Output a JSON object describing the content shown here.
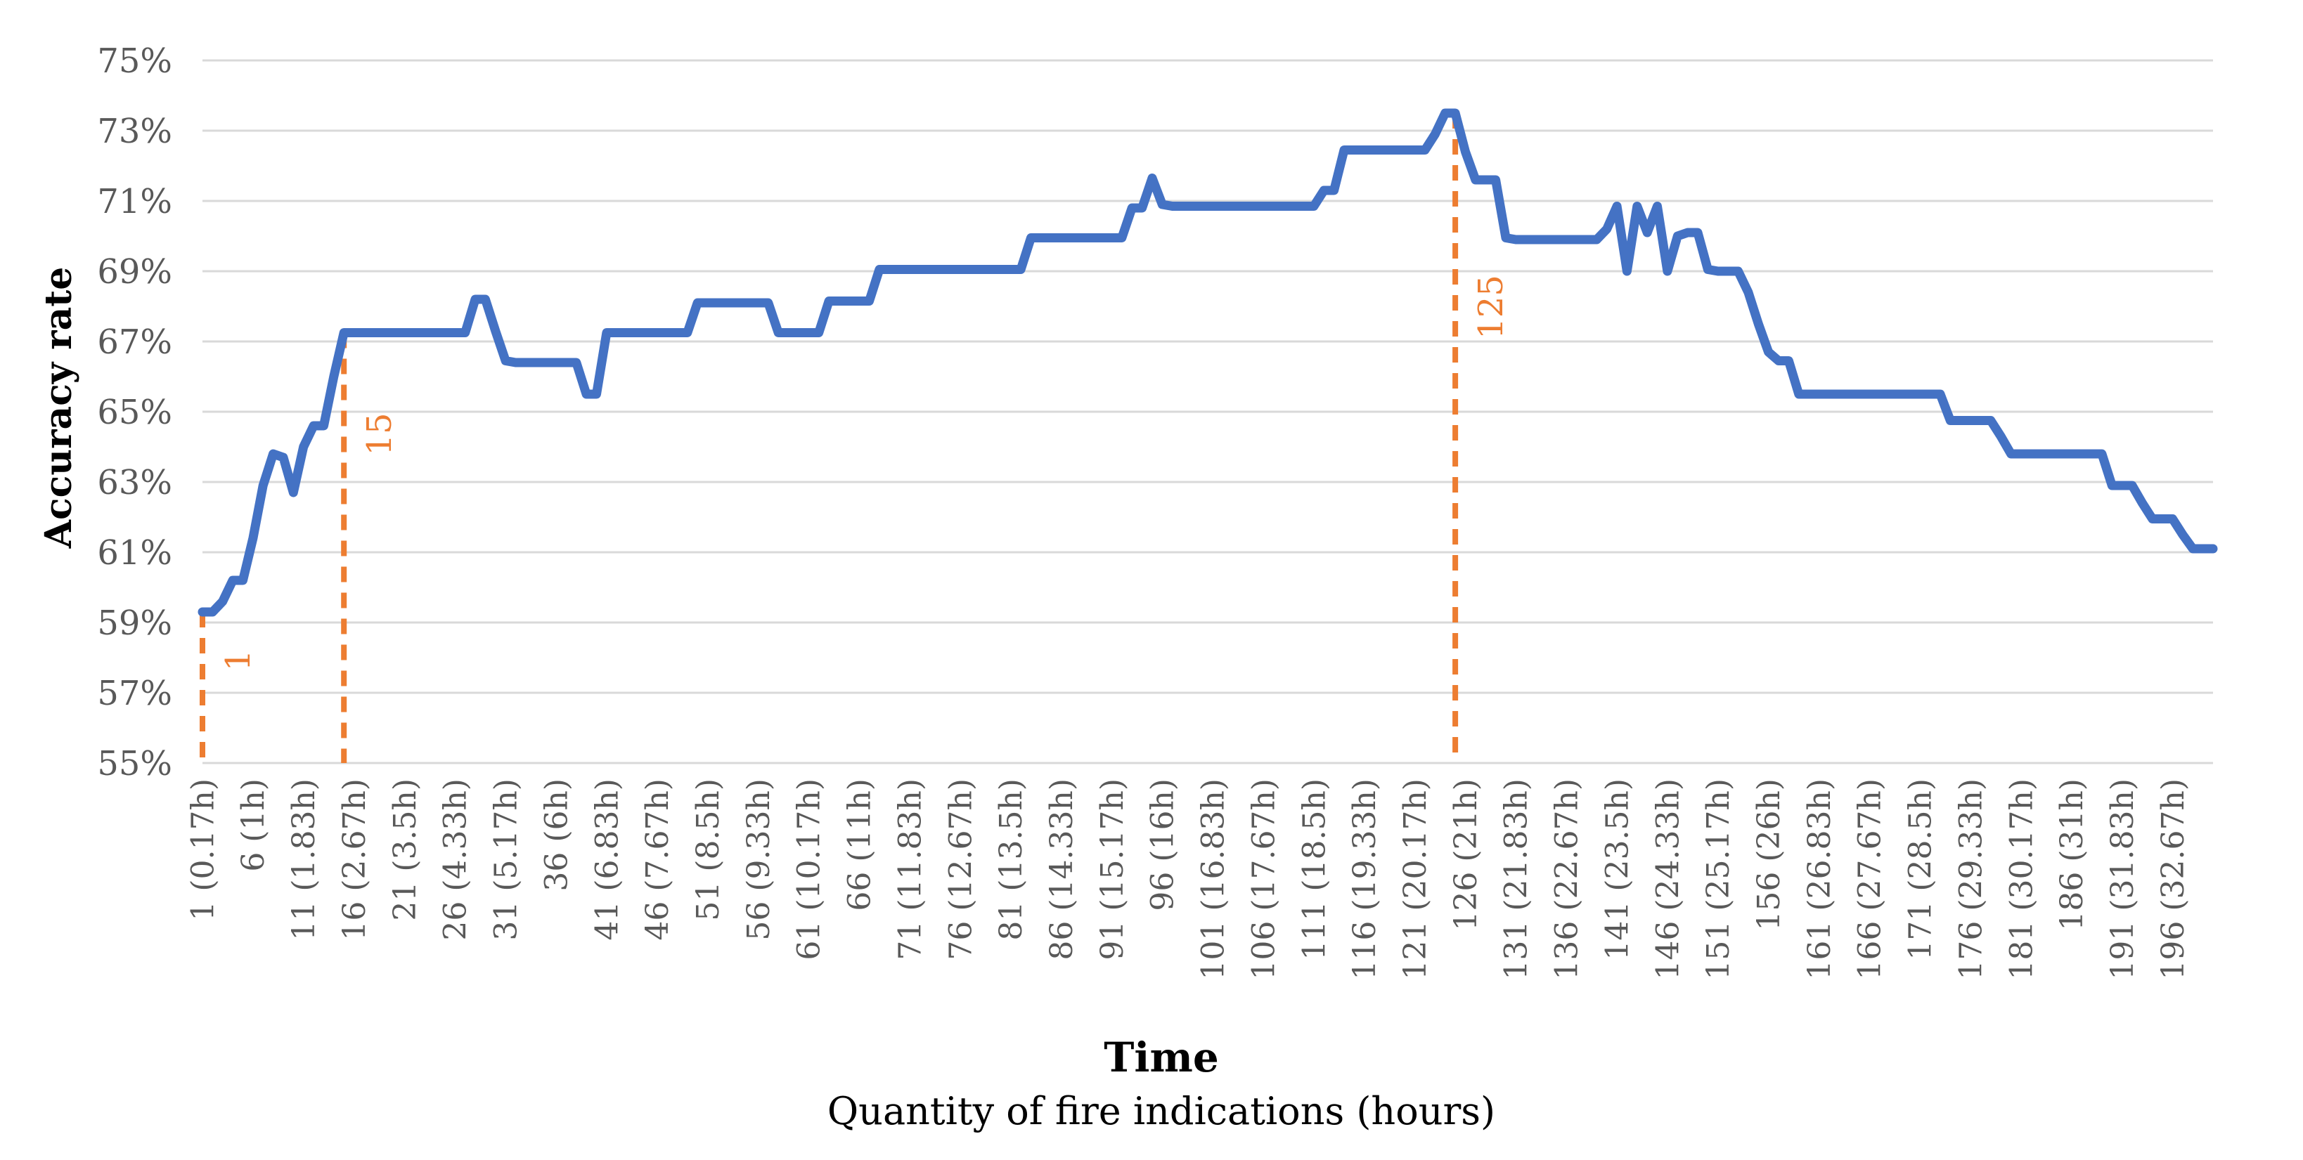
{
  "chart_data": {
    "type": "line",
    "title": "",
    "y_axis": {
      "title": "Accuracy rate",
      "unit": "%",
      "min": 55,
      "max": 75,
      "tick_step": 2,
      "tick_labels": [
        "55%",
        "57%",
        "59%",
        "61%",
        "63%",
        "65%",
        "67%",
        "69%",
        "71%",
        "73%",
        "75%"
      ]
    },
    "x_axis": {
      "title_line1": "Time",
      "title_line2": "Quantity of fire indications (hours)",
      "first_index": 1,
      "label_every": 5,
      "tick_labels": [
        "1 (0.17h)",
        "6 (1h)",
        "11 (1.83h)",
        "16 (2.67h)",
        "21 (3.5h)",
        "26 (4.33h)",
        "31 (5.17h)",
        "36 (6h)",
        "41 (6.83h)",
        "46 (7.67h)",
        "51 (8.5h)",
        "56 (9.33h)",
        "61 (10.17h)",
        "66 (11h)",
        "71 (11.83h)",
        "76 (12.67h)",
        "81 (13.5h)",
        "86 (14.33h)",
        "91 (15.17h)",
        "96 (16h)",
        "101 (16.83h)",
        "106 (17.67h)",
        "111 (18.5h)",
        "116 (19.33h)",
        "121 (20.17h)",
        "126 (21h)",
        "131 (21.83h)",
        "136 (22.67h)",
        "141 (23.5h)",
        "146 (24.33h)",
        "151 (25.17h)",
        "156 (26h)",
        "161 (26.83h)",
        "166 (27.67h)",
        "171 (28.5h)",
        "176 (29.33h)",
        "181 (30.17h)",
        "186 (31h)",
        "191 (31.83h)",
        "196 (32.67h)"
      ],
      "grid": false
    },
    "series": [
      {
        "name": "Accuracy rate",
        "color": "#4472C4",
        "values": [
          59.3,
          59.3,
          59.6,
          60.2,
          60.2,
          61.4,
          62.9,
          63.8,
          63.7,
          62.7,
          64.0,
          64.6,
          64.6,
          66.0,
          67.25,
          67.25,
          67.25,
          67.25,
          67.25,
          67.25,
          67.25,
          67.25,
          67.25,
          67.25,
          67.25,
          67.25,
          67.25,
          68.2,
          68.2,
          67.3,
          66.45,
          66.4,
          66.4,
          66.4,
          66.4,
          66.4,
          66.4,
          66.4,
          65.5,
          65.5,
          67.25,
          67.25,
          67.25,
          67.25,
          67.25,
          67.25,
          67.25,
          67.25,
          67.25,
          68.1,
          68.1,
          68.1,
          68.1,
          68.1,
          68.1,
          68.1,
          68.1,
          67.25,
          67.25,
          67.25,
          67.25,
          67.25,
          68.15,
          68.15,
          68.15,
          68.15,
          68.15,
          69.05,
          69.05,
          69.05,
          69.05,
          69.05,
          69.05,
          69.05,
          69.05,
          69.05,
          69.05,
          69.05,
          69.05,
          69.05,
          69.05,
          69.05,
          69.95,
          69.95,
          69.95,
          69.95,
          69.95,
          69.95,
          69.95,
          69.95,
          69.95,
          69.95,
          70.8,
          70.8,
          71.65,
          70.9,
          70.85,
          70.85,
          70.85,
          70.85,
          70.85,
          70.85,
          70.85,
          70.85,
          70.85,
          70.85,
          70.85,
          70.85,
          70.85,
          70.85,
          70.85,
          71.3,
          71.3,
          72.45,
          72.45,
          72.45,
          72.45,
          72.45,
          72.45,
          72.45,
          72.45,
          72.45,
          72.9,
          73.5,
          73.5,
          72.4,
          71.6,
          71.6,
          71.6,
          69.95,
          69.9,
          69.9,
          69.9,
          69.9,
          69.9,
          69.9,
          69.9,
          69.9,
          69.9,
          70.2,
          70.85,
          69.0,
          70.85,
          70.1,
          70.85,
          69.0,
          70.0,
          70.1,
          70.1,
          69.05,
          69.0,
          69.0,
          69.0,
          68.4,
          67.5,
          66.7,
          66.45,
          66.45,
          65.5,
          65.5,
          65.5,
          65.5,
          65.5,
          65.5,
          65.5,
          65.5,
          65.5,
          65.5,
          65.5,
          65.5,
          65.5,
          65.5,
          65.5,
          64.75,
          64.75,
          64.75,
          64.75,
          64.75,
          64.3,
          63.8,
          63.8,
          63.8,
          63.8,
          63.8,
          63.8,
          63.8,
          63.8,
          63.8,
          63.8,
          62.9,
          62.9,
          62.9,
          62.4,
          61.95,
          61.95,
          61.95,
          61.5,
          61.1,
          61.1,
          61.1
        ]
      }
    ],
    "annotations": [
      {
        "index": 1,
        "label": "1",
        "label_y": 940
      },
      {
        "index": 15,
        "label": "15",
        "label_y": 618
      },
      {
        "index": 125,
        "label": "125",
        "label_y": 437
      }
    ],
    "colors": {
      "line": "#4472C4",
      "annotation": "#ED7D31",
      "gridline": "#D9D9D9",
      "tick_text": "#595959",
      "title_text": "#000000",
      "background": "#FFFFFF"
    },
    "layout_hints": {
      "grid": true,
      "legend": false,
      "ylim": [
        55,
        75
      ]
    }
  }
}
